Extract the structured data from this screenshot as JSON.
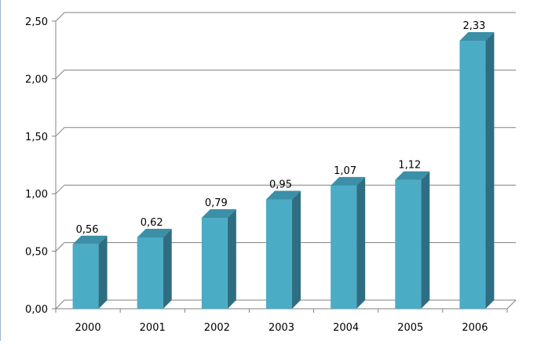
{
  "chart_data": {
    "type": "bar",
    "title": "",
    "xlabel": "",
    "ylabel": "",
    "categories": [
      "2000",
      "2001",
      "2002",
      "2003",
      "2004",
      "2005",
      "2006"
    ],
    "values": [
      0.56,
      0.62,
      0.79,
      0.95,
      1.07,
      1.12,
      2.33
    ],
    "value_labels": [
      "0,56",
      "0,62",
      "0,79",
      "0,95",
      "1,07",
      "1,12",
      "2,33"
    ],
    "ylim": [
      0,
      2.5
    ],
    "yticks": [
      0,
      0.5,
      1.0,
      1.5,
      2.0,
      2.5
    ],
    "ytick_labels": [
      "0,00",
      "0,50",
      "1,00",
      "1,50",
      "2,00",
      "2,50"
    ],
    "grid": true,
    "legend": "none",
    "style": "3d-column",
    "colors": {
      "bar_front": "#4bacc6",
      "bar_top": "#3b8fa7",
      "bar_side": "#2f6e82",
      "grid": "#808080",
      "axis": "#808080"
    }
  }
}
